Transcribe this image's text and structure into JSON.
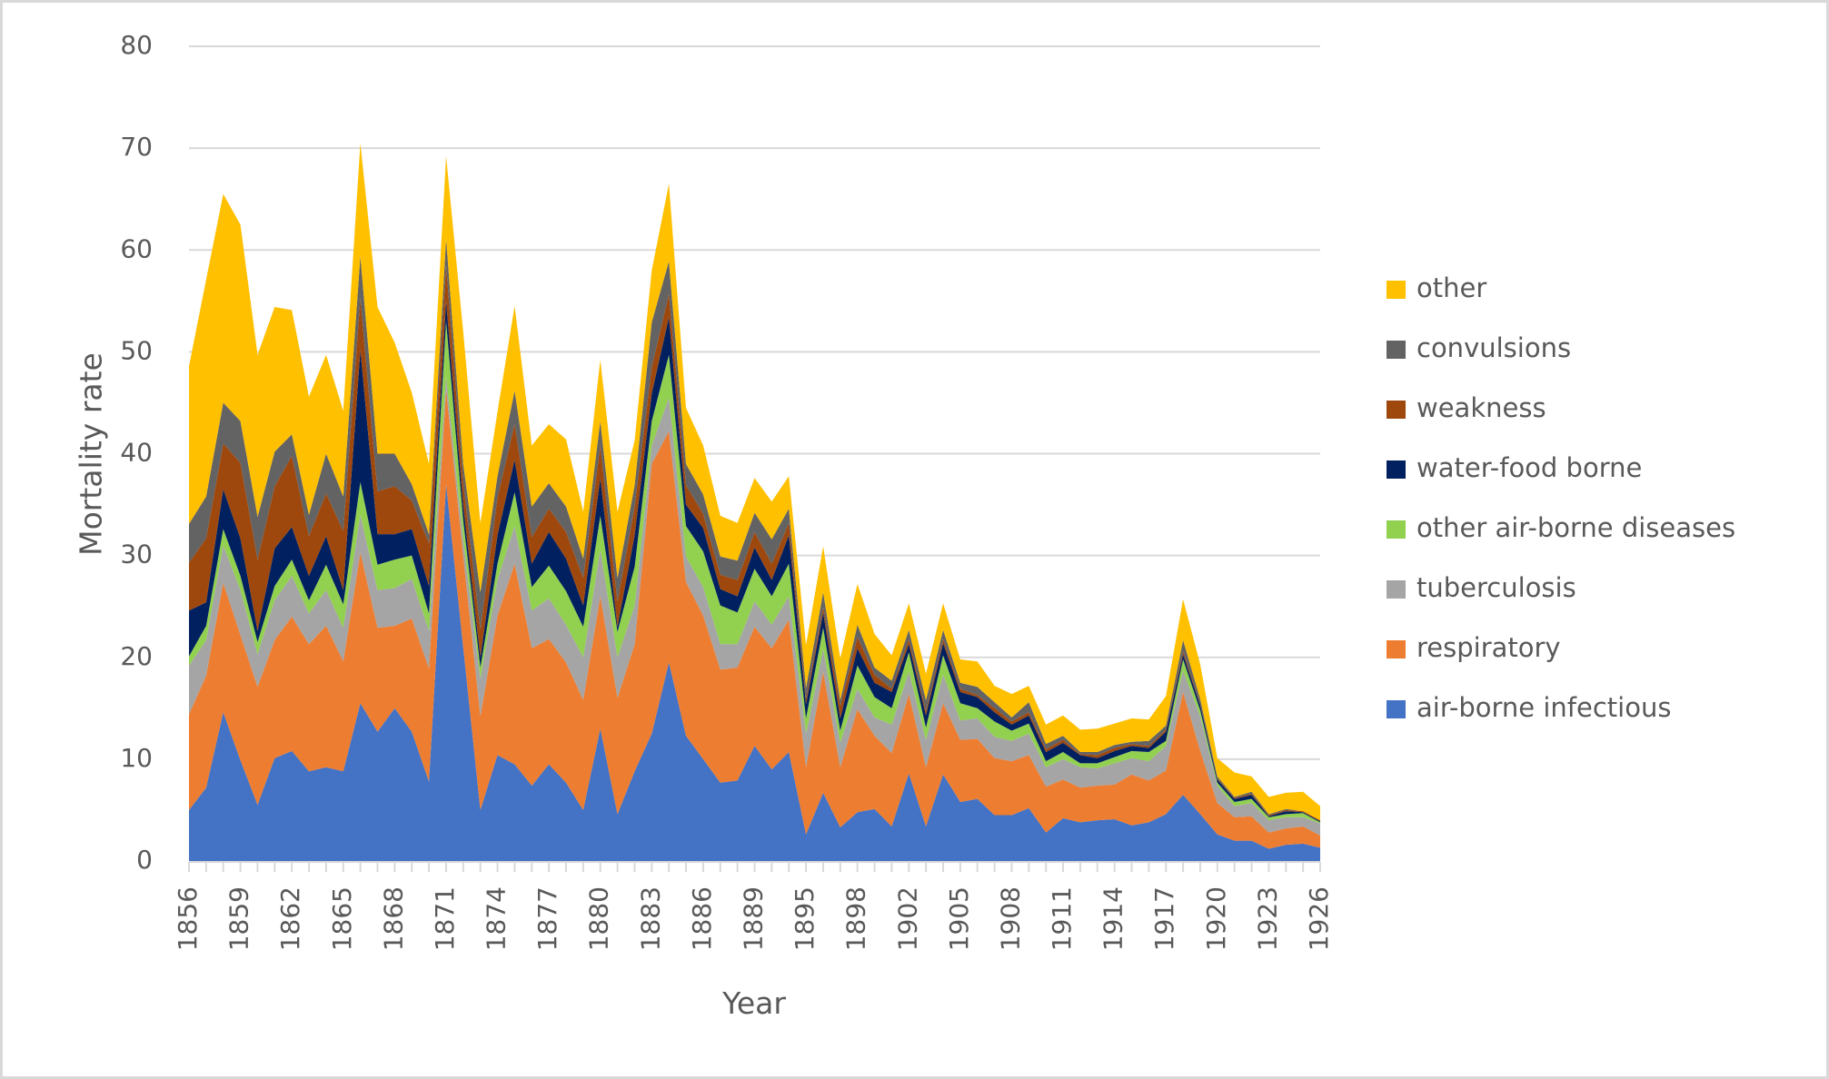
{
  "chart_data": {
    "type": "area",
    "stacked": true,
    "title": "",
    "xlabel": "Year",
    "ylabel": "Mortality rate",
    "ylim": [
      0,
      80
    ],
    "yticks": [
      0,
      10,
      20,
      30,
      40,
      50,
      60,
      70,
      80
    ],
    "grid": true,
    "legend_position": "right",
    "categories": [
      1856,
      1857,
      1858,
      1859,
      1860,
      1861,
      1862,
      1863,
      1864,
      1865,
      1866,
      1867,
      1868,
      1869,
      1870,
      1871,
      1872,
      1873,
      1874,
      1875,
      1876,
      1877,
      1878,
      1879,
      1880,
      1881,
      1882,
      1883,
      1884,
      1885,
      1886,
      1887,
      1888,
      1889,
      1890,
      1891,
      1895,
      1896,
      1897,
      1898,
      1899,
      1901,
      1902,
      1903,
      1904,
      1905,
      1906,
      1907,
      1908,
      1909,
      1910,
      1911,
      1912,
      1913,
      1914,
      1915,
      1916,
      1917,
      1918,
      1919,
      1920,
      1921,
      1922,
      1923,
      1924,
      1925,
      1926
    ],
    "xtick_labels": [
      "1856",
      "1859",
      "1862",
      "1865",
      "1868",
      "1871",
      "1874",
      "1877",
      "1880",
      "1883",
      "1886",
      "1889",
      "1895",
      "1898",
      "1902",
      "1905",
      "1908",
      "1911",
      "1914",
      "1917",
      "1920",
      "1923",
      "1926"
    ],
    "series": [
      {
        "name": "air-borne infectious",
        "color": "#4472c4",
        "values": [
          5.0,
          7.2,
          14.6,
          9.9,
          5.5,
          10.1,
          10.8,
          8.8,
          9.2,
          8.8,
          15.5,
          12.7,
          15.0,
          12.7,
          7.8,
          37.0,
          21.0,
          5.0,
          10.4,
          9.5,
          7.4,
          9.5,
          7.7,
          5.0,
          13.0,
          4.6,
          8.8,
          12.5,
          19.5,
          12.3,
          10.0,
          7.7,
          7.9,
          11.3,
          9.0,
          10.7,
          2.6,
          6.7,
          3.3,
          4.8,
          5.1,
          3.4,
          8.6,
          3.4,
          8.5,
          5.8,
          6.1,
          4.5,
          4.5,
          5.2,
          2.8,
          4.2,
          3.8,
          4.0,
          4.1,
          3.5,
          3.8,
          4.6,
          6.5,
          4.6,
          2.6,
          2.0,
          2.0,
          1.2,
          1.6,
          1.7,
          1.3
        ]
      },
      {
        "name": "respiratory",
        "color": "#ed7d31",
        "values": [
          9.4,
          11.0,
          12.7,
          12.3,
          11.6,
          11.6,
          13.2,
          12.5,
          13.9,
          10.8,
          14.8,
          10.2,
          8.1,
          11.1,
          11.1,
          9.3,
          9.0,
          9.2,
          13.7,
          19.7,
          13.5,
          12.3,
          11.8,
          10.8,
          13.0,
          11.4,
          12.5,
          26.5,
          22.7,
          15.1,
          14.1,
          11.1,
          11.1,
          11.7,
          11.9,
          13.0,
          6.6,
          11.9,
          5.9,
          10.1,
          7.2,
          7.2,
          7.8,
          5.8,
          7.0,
          6.1,
          5.9,
          5.6,
          5.3,
          5.2,
          4.5,
          3.8,
          3.4,
          3.4,
          3.4,
          5.0,
          4.1,
          4.3,
          10.1,
          6.2,
          3.1,
          2.3,
          2.4,
          1.6,
          1.6,
          1.7,
          1.2
        ]
      },
      {
        "name": "tuberculosis",
        "color": "#a5a5a5",
        "values": [
          4.8,
          3.5,
          3.7,
          4.4,
          3.2,
          3.9,
          4.0,
          3.0,
          3.5,
          3.3,
          3.7,
          3.7,
          3.7,
          3.9,
          3.7,
          1.3,
          1.5,
          3.7,
          3.5,
          3.7,
          3.7,
          4.0,
          3.7,
          4.2,
          4.6,
          4.0,
          3.8,
          1.8,
          3.3,
          2.5,
          2.8,
          2.5,
          2.3,
          2.5,
          2.3,
          2.3,
          3.3,
          2.2,
          2.4,
          2.0,
          1.8,
          2.8,
          2.2,
          2.7,
          2.8,
          1.9,
          2.0,
          2.1,
          2.0,
          2.1,
          1.9,
          2.0,
          2.0,
          1.7,
          2.1,
          1.6,
          1.9,
          2.4,
          2.1,
          3.4,
          1.7,
          1.1,
          1.3,
          1.2,
          1.1,
          0.9,
          1.2
        ]
      },
      {
        "name": "other air-borne diseases",
        "color": "#92d050",
        "values": [
          0.9,
          1.4,
          1.6,
          1.4,
          1.2,
          1.4,
          1.6,
          1.3,
          2.5,
          2.3,
          3.2,
          2.5,
          2.8,
          2.3,
          1.7,
          5.4,
          2.0,
          1.1,
          1.6,
          3.3,
          2.3,
          3.2,
          3.3,
          3.0,
          3.3,
          2.5,
          3.8,
          2.4,
          4.2,
          3.0,
          3.5,
          3.8,
          3.1,
          3.2,
          2.8,
          3.2,
          1.5,
          2.1,
          1.2,
          2.3,
          2.0,
          1.6,
          1.9,
          1.2,
          1.9,
          1.7,
          1.0,
          1.5,
          1.0,
          1.0,
          0.6,
          0.7,
          0.4,
          0.5,
          0.6,
          0.7,
          0.9,
          0.5,
          1.1,
          0.6,
          0.3,
          0.4,
          0.4,
          0.3,
          0.3,
          0.4,
          0.1
        ]
      },
      {
        "name": "water-food borne",
        "color": "#002060",
        "values": [
          4.5,
          2.3,
          3.9,
          3.7,
          1.1,
          3.7,
          3.2,
          2.4,
          2.8,
          1.4,
          13.0,
          3.0,
          2.5,
          2.6,
          2.7,
          2.0,
          1.5,
          1.0,
          2.8,
          3.2,
          2.3,
          3.3,
          3.2,
          2.1,
          3.7,
          0.5,
          3.1,
          2.7,
          3.7,
          2.1,
          2.3,
          1.6,
          1.6,
          2.1,
          1.6,
          2.8,
          1.4,
          1.5,
          1.2,
          1.7,
          1.4,
          1.6,
          0.8,
          1.2,
          1.2,
          1.1,
          1.1,
          0.9,
          0.6,
          0.8,
          0.9,
          0.9,
          0.8,
          0.5,
          0.6,
          0.5,
          0.4,
          0.9,
          0.5,
          0.5,
          0.3,
          0.3,
          0.4,
          0.1,
          0.3,
          0.1,
          0.1
        ]
      },
      {
        "name": "weakness",
        "color": "#9e480e",
        "values": [
          4.7,
          6.3,
          4.5,
          7.4,
          7.0,
          6.1,
          7.0,
          3.9,
          4.2,
          5.8,
          5.1,
          4.2,
          4.7,
          2.8,
          4.2,
          3.5,
          2.2,
          2.7,
          3.7,
          3.5,
          2.6,
          2.3,
          2.6,
          2.7,
          3.2,
          2.5,
          2.8,
          2.6,
          2.3,
          1.9,
          1.4,
          1.4,
          1.6,
          1.5,
          1.6,
          1.2,
          0.5,
          0.5,
          1.2,
          1.1,
          0.8,
          0.3,
          0.5,
          0.4,
          0.4,
          0.3,
          0.2,
          0.4,
          0.3,
          0.3,
          0.3,
          0.3,
          0.1,
          0.3,
          0.3,
          0.2,
          0.2,
          0.2,
          0.3,
          0.1,
          0.1,
          0.1,
          0.1,
          0.1,
          0.1,
          0.1,
          0.1
        ]
      },
      {
        "name": "convulsions",
        "color": "#636363",
        "values": [
          3.8,
          4.1,
          4.0,
          4.1,
          4.2,
          3.4,
          2.1,
          2.1,
          3.9,
          3.4,
          4.1,
          3.7,
          3.2,
          1.6,
          0.9,
          2.6,
          1.8,
          3.7,
          2.1,
          3.3,
          3.0,
          2.5,
          2.5,
          1.9,
          2.4,
          2.3,
          2.1,
          4.4,
          3.2,
          2.1,
          1.9,
          1.8,
          1.9,
          1.9,
          2.4,
          1.4,
          1.1,
          1.5,
          0.6,
          1.2,
          0.7,
          0.8,
          0.9,
          1.1,
          0.9,
          0.6,
          0.8,
          0.6,
          0.4,
          1.0,
          0.5,
          0.4,
          0.2,
          0.3,
          0.3,
          0.2,
          0.5,
          0.4,
          1.1,
          0.5,
          0.2,
          0.1,
          0.2,
          0.1,
          0.1,
          0.0,
          0.0
        ]
      },
      {
        "name": "other",
        "color": "#ffc000",
        "values": [
          15.5,
          21.3,
          20.5,
          19.3,
          15.9,
          14.2,
          12.2,
          11.6,
          9.7,
          8.4,
          11.1,
          14.4,
          10.9,
          9.0,
          6.9,
          8.1,
          13.0,
          6.8,
          6.3,
          8.3,
          6.0,
          5.8,
          6.6,
          4.6,
          6.0,
          6.5,
          4.4,
          5.1,
          7.6,
          5.5,
          4.8,
          4.0,
          3.7,
          3.4,
          3.7,
          3.2,
          4.2,
          4.5,
          4.1,
          4.0,
          3.3,
          2.5,
          2.6,
          2.6,
          2.6,
          2.3,
          2.5,
          1.6,
          2.3,
          1.6,
          1.9,
          2.0,
          2.2,
          2.3,
          2.1,
          2.3,
          2.1,
          2.9,
          4.0,
          3.4,
          1.8,
          2.4,
          1.5,
          1.7,
          1.6,
          1.9,
          1.4
        ]
      }
    ],
    "legend_order": [
      "other",
      "convulsions",
      "weakness",
      "water-food borne",
      "other air-borne diseases",
      "tuberculosis",
      "respiratory",
      "air-borne infectious"
    ]
  }
}
